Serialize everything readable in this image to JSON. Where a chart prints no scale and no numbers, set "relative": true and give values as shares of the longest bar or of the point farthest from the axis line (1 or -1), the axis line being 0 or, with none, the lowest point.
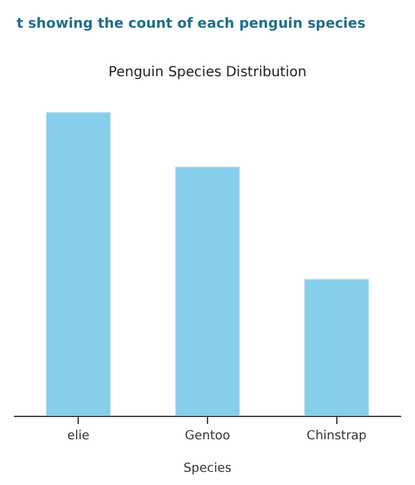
{
  "chart_data": {
    "type": "bar",
    "title": "Penguin Species Distribution",
    "subtitle": "t showing the count of each penguin species",
    "xlabel": "Species",
    "categories": [
      "elie",
      "Gentoo",
      "Chinstrap"
    ],
    "values": [
      1,
      0.82,
      0.45
    ],
    "color": "#87ceeb",
    "relative": true,
    "legend": false
  }
}
